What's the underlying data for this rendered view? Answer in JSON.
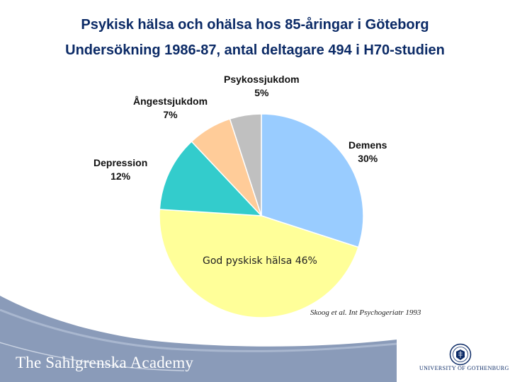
{
  "title": "Psykisk hälsa och ohälsa hos 85-åringar i Göteborg",
  "subtitle": "Undersökning 1986-87, antal deltagare 494 i H70-studien",
  "citation": "Skoog et al. Int Psychogeriatr 1993",
  "footer": {
    "brand": "The Sahlgrenska Academy",
    "university": "UNIVERSITY OF GOTHENBURG"
  },
  "colors": {
    "title": "#0b2a66",
    "footer_band": "#8a9bb9"
  },
  "icons": [
    "university-seal-icon"
  ],
  "chart_data": {
    "type": "pie",
    "title": "",
    "start": "12 o'clock, clockwise",
    "slices": [
      {
        "name": "Demens",
        "value": 30,
        "label": "30%",
        "color": "#99ccff"
      },
      {
        "name": "God pyskisk hälsa",
        "value": 46,
        "label": "God pyskisk hälsa 46%",
        "color": "#ffff99"
      },
      {
        "name": "Depression",
        "value": 12,
        "label": "12%",
        "color": "#33cccc"
      },
      {
        "name": "Ångestsjukdom",
        "value": 7,
        "label": "7%",
        "color": "#ffcc99"
      },
      {
        "name": "Psykossjukdom",
        "value": 5,
        "label": "5%",
        "color": "#c0c0c0"
      }
    ]
  }
}
